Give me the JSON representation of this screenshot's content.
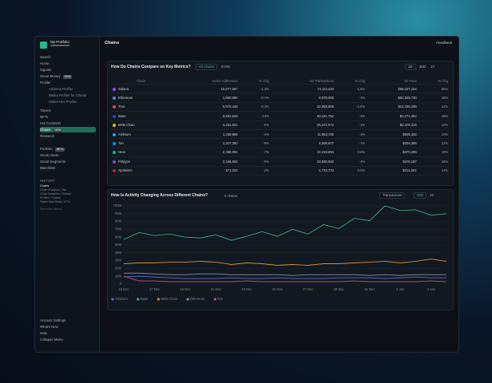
{
  "sidebar": {
    "portfolio": "My Portfolio",
    "nav": [
      {
        "label": "Search"
      },
      {
        "label": "Home"
      },
      {
        "label": "Signals"
      },
      {
        "label": "Smart Money",
        "badge": "NEW"
      },
      {
        "label": "Profiler"
      }
    ],
    "profiler_links": [
      {
        "label": "Address Profiler"
      },
      {
        "label": "Wallet Profiler for Clients"
      },
      {
        "label": "Wallet Hex Profiler"
      }
    ],
    "nav2": [
      {
        "label": "Tokens"
      },
      {
        "label": "NFTs"
      },
      {
        "label": "Hot Contracts"
      },
      {
        "label": "Chains",
        "badge": "NEW",
        "active": true
      },
      {
        "label": "Research"
      }
    ],
    "nav3": [
      {
        "label": "Portfolio",
        "badge": "BETA"
      },
      {
        "label": "Smart Alerts"
      },
      {
        "label": "Smart Segments"
      },
      {
        "label": "Watchlists"
      }
    ],
    "history": {
      "title": "HISTORY",
      "items": [
        "Chains",
        "Chain Analytics | Ton",
        "Chain Analytics | Solana",
        "Profiler | Solana",
        "Token God Mode | ETH"
      ],
      "more": "See more history"
    },
    "bottom": [
      {
        "label": "Account Settings"
      },
      {
        "label": "What's New"
      },
      {
        "label": "Help"
      },
      {
        "label": "Collapse Menu"
      }
    ]
  },
  "header": {
    "title": "Chains",
    "feedback": "Feedback"
  },
  "table": {
    "title": "How Do Chains Compare on Key Metrics?",
    "tabs": [
      "All Chains",
      "EVMs"
    ],
    "periods": [
      "1D",
      "30D",
      "1Y"
    ],
    "columns": [
      "Chain",
      "Active Addresses",
      "% Chg",
      "1D Transactions",
      "% Chg",
      "1D Fees",
      "% Chg"
    ],
    "rows": [
      [
        "Solana",
        "10,877,597",
        "-1.3%",
        "74,113,428",
        "-1.6%",
        "$55,447,154",
        "60%"
      ],
      [
        "Ethereum",
        "1,960,990",
        "-8.7%",
        "8,978,286",
        "-1%",
        "$52,929,730",
        "28%"
      ],
      [
        "Tron",
        "5,875,446",
        "0.4%",
        "32,968,869",
        "-1.8%",
        "$12,436,296",
        "12%"
      ],
      [
        "Base",
        "3,602,628",
        "-13%",
        "60,161,752",
        "-3%",
        "$1,271,452",
        "40%"
      ],
      [
        "BNB Chain",
        "3,451,821",
        "-5%",
        "25,372,972",
        "-1%",
        "$2,478,316",
        "10%"
      ],
      [
        "Arbitrum",
        "1,238,958",
        "-4%",
        "11,953,798",
        "-1%",
        "$649,332",
        "10%"
      ],
      [
        "Ton",
        "1,327,290",
        "-9%",
        "4,608,837",
        "-1%",
        "$334,386",
        "12%"
      ],
      [
        "Near",
        "2,368,904",
        "-7%",
        "10,219,894",
        "-2.5%",
        "$379,296",
        "19%"
      ],
      [
        "Polygon",
        "2,156,504",
        "-5%",
        "23,836,926",
        "-4%",
        "$378,197",
        "18%"
      ],
      [
        "Optimism",
        "471,322",
        "-2%",
        "1,723,733",
        "0.5%",
        "$214,001",
        "14%"
      ]
    ]
  },
  "chart_data": {
    "type": "line",
    "title": "How Is Activity Changing Across Different Chains?",
    "selector": "5 chains",
    "metric": "Transactions",
    "periods": [
      "30D",
      "1Y"
    ],
    "categories": [
      "15 Dec",
      null,
      "17 Dec",
      null,
      "19 Dec",
      null,
      "21 Dec",
      null,
      "23 Dec",
      null,
      "25 Dec",
      null,
      "27 Dec",
      null,
      "29 Dec",
      null,
      "31 Dec",
      null,
      "2 Jan",
      null,
      "4 Jan",
      null
    ],
    "ylim": [
      0,
      100000000
    ],
    "yticks": [
      0,
      {
        "value": 10000000,
        "label": "10M"
      },
      {
        "value": 20000000,
        "label": "20M"
      },
      {
        "value": 30000000,
        "label": "30M"
      },
      {
        "value": 40000000,
        "label": "40M"
      },
      {
        "value": 50000000,
        "label": "50M"
      },
      {
        "value": 60000000,
        "label": "60M"
      },
      {
        "value": 70000000,
        "label": "70M"
      },
      {
        "value": 80000000,
        "label": "80M"
      },
      {
        "value": 90000000,
        "label": "90M"
      },
      {
        "value": 100000000,
        "label": "100M"
      }
    ],
    "grid": true,
    "series": [
      {
        "name": "Arbitrum",
        "color": "#5b6bd6",
        "values": [
          9000000,
          10000000,
          9000000,
          8000000,
          7000000,
          7000000,
          7000000,
          8000000,
          7000000,
          7000000,
          8000000,
          7000000,
          7000000,
          7000000,
          8000000,
          8000000,
          8000000,
          7000000,
          8000000,
          9000000,
          8000000,
          8000000
        ]
      },
      {
        "name": "Base",
        "color": "#3fa58f",
        "values": [
          57000000,
          66000000,
          62000000,
          64000000,
          60000000,
          59000000,
          63000000,
          56000000,
          61000000,
          67000000,
          61000000,
          70000000,
          64000000,
          76000000,
          71000000,
          84000000,
          81000000,
          100000000,
          94000000,
          95000000,
          88000000,
          90000000
        ]
      },
      {
        "name": "BNB Chain",
        "color": "#d98e2b",
        "values": [
          26000000,
          27000000,
          27000000,
          28000000,
          28000000,
          29000000,
          28000000,
          25000000,
          27000000,
          26000000,
          24000000,
          25000000,
          24000000,
          26000000,
          26000000,
          27000000,
          28000000,
          29000000,
          27000000,
          29000000,
          32000000,
          29000000
        ]
      },
      {
        "name": "Ethereum",
        "color": "#8c8fa8",
        "values": [
          14000000,
          14000000,
          13000000,
          12000000,
          12000000,
          13000000,
          13000000,
          12000000,
          12000000,
          12000000,
          12000000,
          11000000,
          12000000,
          12000000,
          12000000,
          12000000,
          11000000,
          12000000,
          11000000,
          12000000,
          12000000,
          12000000
        ]
      },
      {
        "name": "Ton",
        "color": "#c8546a",
        "values": [
          10000000,
          4000000,
          4000000,
          3000000,
          3000000,
          3000000,
          3000000,
          3000000,
          4000000,
          3000000,
          3000000,
          3000000,
          3000000,
          3000000,
          3000000,
          4000000,
          3000000,
          3000000,
          3000000,
          3000000,
          4000000,
          3000000
        ]
      }
    ]
  }
}
